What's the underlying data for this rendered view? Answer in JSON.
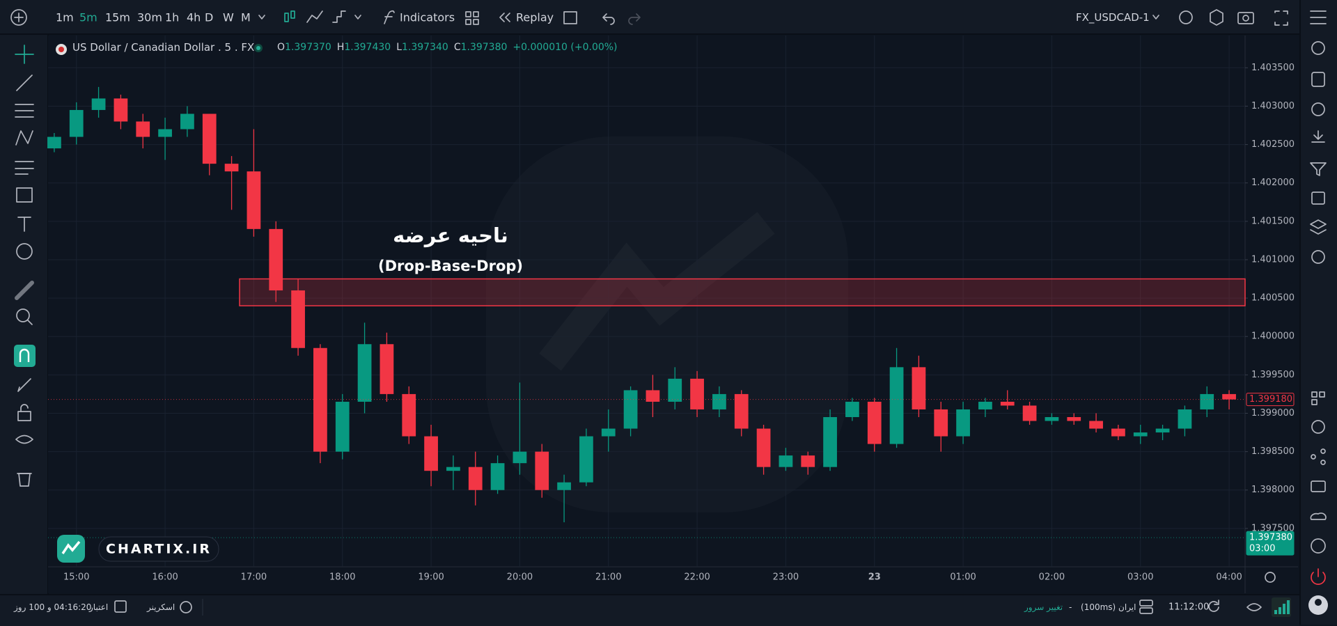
{
  "toolbar": {
    "intervals": [
      "1m",
      "5m",
      "15m",
      "30m",
      "1h",
      "4h",
      "D",
      "W",
      "M"
    ],
    "active_interval": 1,
    "active_color": "#22ab94",
    "indicators": "Indicators",
    "replay": "Replay",
    "symbol": "FX_USDCAD-1"
  },
  "legend": {
    "symbol": "US Dollar / Canadian Dollar . 5 . FX",
    "ohlc": [
      {
        "key": "O",
        "value": "1.397370"
      },
      {
        "key": "H",
        "value": "1.397430"
      },
      {
        "key": "L",
        "value": "1.397340"
      },
      {
        "key": "C",
        "value": "1.397380"
      }
    ],
    "change": "+0.000010 (+0.00%)"
  },
  "watermark": "CHARTIX.IR",
  "chart_data": {
    "type": "candlestick",
    "annotations": [
      "ناحیه عرضه",
      "(Drop-Base-Drop)"
    ],
    "x": [
      14.75,
      15,
      15.25,
      15.5,
      15.75,
      16,
      16.25,
      16.5,
      16.75,
      17,
      17.25,
      17.5,
      17.75,
      18,
      18.25,
      18.5,
      18.75,
      19,
      19.25,
      19.5,
      19.75,
      20,
      20.25,
      20.5,
      20.75,
      21,
      21.25,
      21.5,
      21.75,
      22,
      22.25,
      22.5,
      22.75,
      23,
      23.25,
      23.5,
      23.75,
      24,
      24.25,
      24.5,
      24.75,
      25,
      25.25,
      25.5,
      25.75,
      26,
      26.25,
      26.5,
      26.75,
      27,
      27.25,
      27.5,
      27.75,
      28
    ],
    "open": [
      1.40245,
      1.4026,
      1.40295,
      1.4031,
      1.4028,
      1.4026,
      1.4027,
      1.4029,
      1.40225,
      1.40215,
      1.4014,
      1.4006,
      1.39985,
      1.3985,
      1.39915,
      1.3999,
      1.39925,
      1.3987,
      1.39825,
      1.3983,
      1.398,
      1.39835,
      1.3985,
      1.398,
      1.3981,
      1.3987,
      1.3988,
      1.3993,
      1.39915,
      1.39945,
      1.39905,
      1.39925,
      1.3988,
      1.3983,
      1.39845,
      1.3983,
      1.39895,
      1.39915,
      1.3986,
      1.3996,
      1.39905,
      1.3987,
      1.39905,
      1.39915,
      1.3991,
      1.3989,
      1.39895,
      1.3989,
      1.3988,
      1.3987,
      1.39875,
      1.3988,
      1.39905,
      1.39925
    ],
    "high": [
      1.40265,
      1.40305,
      1.40325,
      1.40315,
      1.4029,
      1.40285,
      1.403,
      1.4029,
      1.40235,
      1.4027,
      1.4015,
      1.40075,
      1.3999,
      1.39925,
      1.40018,
      1.40005,
      1.39935,
      1.39885,
      1.39845,
      1.3985,
      1.39845,
      1.3994,
      1.3986,
      1.3982,
      1.3988,
      1.39905,
      1.39935,
      1.3995,
      1.3996,
      1.39955,
      1.39935,
      1.3993,
      1.39885,
      1.39855,
      1.3985,
      1.39905,
      1.3992,
      1.3992,
      1.39985,
      1.39975,
      1.39915,
      1.39915,
      1.3992,
      1.3993,
      1.39915,
      1.399,
      1.399,
      1.399,
      1.39885,
      1.39885,
      1.39885,
      1.3991,
      1.39935,
      1.3993
    ],
    "low": [
      1.4024,
      1.4025,
      1.40285,
      1.4027,
      1.40245,
      1.4023,
      1.4026,
      1.4021,
      1.40165,
      1.4013,
      1.40045,
      1.39975,
      1.39835,
      1.3984,
      1.399,
      1.39915,
      1.3986,
      1.39805,
      1.398,
      1.3978,
      1.39795,
      1.3982,
      1.3979,
      1.39758,
      1.39805,
      1.3985,
      1.3987,
      1.39895,
      1.39905,
      1.39895,
      1.39895,
      1.3987,
      1.3982,
      1.39825,
      1.3982,
      1.39825,
      1.3989,
      1.3985,
      1.39855,
      1.39895,
      1.3985,
      1.3986,
      1.39895,
      1.39905,
      1.39885,
      1.39885,
      1.39885,
      1.39875,
      1.39865,
      1.3986,
      1.39865,
      1.3987,
      1.39895,
      1.39905
    ],
    "close": [
      1.4026,
      1.40295,
      1.4031,
      1.4028,
      1.4026,
      1.4027,
      1.4029,
      1.40225,
      1.40215,
      1.4014,
      1.4006,
      1.39985,
      1.3985,
      1.39915,
      1.3999,
      1.39925,
      1.3987,
      1.39825,
      1.3983,
      1.398,
      1.39835,
      1.3985,
      1.398,
      1.3981,
      1.3987,
      1.3988,
      1.3993,
      1.39915,
      1.39945,
      1.39905,
      1.39925,
      1.3988,
      1.3983,
      1.39845,
      1.3983,
      1.39895,
      1.39915,
      1.3986,
      1.3996,
      1.39905,
      1.3987,
      1.39905,
      1.39915,
      1.3991,
      1.3989,
      1.39895,
      1.3989,
      1.3988,
      1.3987,
      1.39875,
      1.3988,
      1.39905,
      1.39925,
      1.39918
    ],
    "up_color": "#089981",
    "down_color": "#f23645",
    "xlim": [
      14.68,
      28.18
    ],
    "xticks": [
      {
        "value": 15,
        "label": "15:00"
      },
      {
        "value": 16,
        "label": "16:00"
      },
      {
        "value": 17,
        "label": "17:00"
      },
      {
        "value": 18,
        "label": "18:00"
      },
      {
        "value": 19,
        "label": "19:00"
      },
      {
        "value": 20,
        "label": "20:00"
      },
      {
        "value": 21,
        "label": "21:00"
      },
      {
        "value": 22,
        "label": "22:00"
      },
      {
        "value": 23,
        "label": "23:00"
      },
      {
        "value": 24,
        "label": "23"
      },
      {
        "value": 25,
        "label": "01:00"
      },
      {
        "value": 26,
        "label": "02:00"
      },
      {
        "value": 27,
        "label": "03:00"
      },
      {
        "value": 28,
        "label": "04:00"
      }
    ],
    "ylim": [
      1.397,
      1.40392
    ],
    "yticks": [
      {
        "value": 1.3975,
        "label": "1.397500"
      },
      {
        "value": 1.398,
        "label": "1.398000"
      },
      {
        "value": 1.3985,
        "label": "1.398500"
      },
      {
        "value": 1.399,
        "label": "1.399000"
      },
      {
        "value": 1.3995,
        "label": "1.399500"
      },
      {
        "value": 1.4,
        "label": "1.400000"
      },
      {
        "value": 1.4005,
        "label": "1.400500"
      },
      {
        "value": 1.401,
        "label": "1.401000"
      },
      {
        "value": 1.4015,
        "label": "1.401500"
      },
      {
        "value": 1.402,
        "label": "1.402000"
      },
      {
        "value": 1.4025,
        "label": "1.402500"
      },
      {
        "value": 1.403,
        "label": "1.403000"
      },
      {
        "value": 1.4035,
        "label": "1.403500"
      }
    ],
    "grid": true,
    "zone": {
      "x": 16.84,
      "low": 1.4004,
      "high": 1.40075,
      "color": "#f23645"
    },
    "price_tags": [
      {
        "value": 1.39918,
        "label": "1.399180",
        "color": "#f23645"
      },
      {
        "value": 1.39738,
        "label": "1.397380",
        "sublabel": "03:00",
        "color": "#089981"
      }
    ]
  },
  "statusbar": {
    "credit": "04:16:20 و 100 روز",
    "credit_label": "اعتبار",
    "screener": "اسکرینر",
    "change_server": "تغییر سرور",
    "separator": "-",
    "server": "ایران (100ms)",
    "time": "11:12:00"
  }
}
